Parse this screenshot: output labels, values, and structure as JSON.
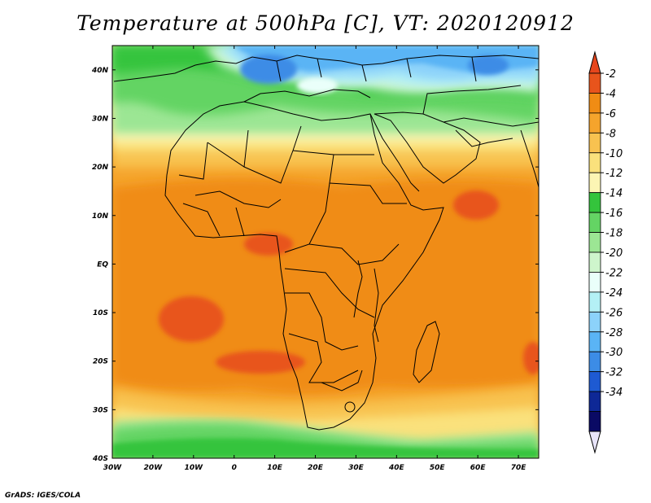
{
  "title": "Temperature at 500hPa [C], VT: 2020120912",
  "credit": "GrADS: IGES/COLA",
  "map": {
    "lon_range": [
      -30,
      75
    ],
    "lat_range": [
      -40,
      45
    ],
    "x_ticks": [
      {
        "lon": -30,
        "label": "30W"
      },
      {
        "lon": -20,
        "label": "20W"
      },
      {
        "lon": -10,
        "label": "10W"
      },
      {
        "lon": 0,
        "label": "0"
      },
      {
        "lon": 10,
        "label": "10E"
      },
      {
        "lon": 20,
        "label": "20E"
      },
      {
        "lon": 30,
        "label": "30E"
      },
      {
        "lon": 40,
        "label": "40E"
      },
      {
        "lon": 50,
        "label": "50E"
      },
      {
        "lon": 60,
        "label": "60E"
      },
      {
        "lon": 70,
        "label": "70E"
      }
    ],
    "y_ticks": [
      {
        "lat": 40,
        "label": "40N"
      },
      {
        "lat": 30,
        "label": "30N"
      },
      {
        "lat": 20,
        "label": "20N"
      },
      {
        "lat": 10,
        "label": "10N"
      },
      {
        "lat": 0,
        "label": "EQ"
      },
      {
        "lat": -10,
        "label": "10S"
      },
      {
        "lat": -20,
        "label": "20S"
      },
      {
        "lat": -30,
        "label": "30S"
      },
      {
        "lat": -40,
        "label": "40S"
      }
    ]
  },
  "colorbar": {
    "labels": [
      "-2",
      "-4",
      "-6",
      "-8",
      "-10",
      "-12",
      "-14",
      "-16",
      "-18",
      "-20",
      "-22",
      "-24",
      "-26",
      "-28",
      "-30",
      "-32",
      "-34"
    ],
    "colors": [
      "#e8541c",
      "#f08c14",
      "#f5a42c",
      "#f8c250",
      "#fae17c",
      "#fcf5b4",
      "#34c43c",
      "#64d464",
      "#9ce694",
      "#cef5cc",
      "#eafffa",
      "#b4f0f5",
      "#8cd2fa",
      "#5ab4f5",
      "#3c8ce6",
      "#1e5ad2",
      "#0e2896",
      "#0a0a64"
    ],
    "top_color": "#e6461c",
    "bottom_color": "#e8e4fa"
  }
}
